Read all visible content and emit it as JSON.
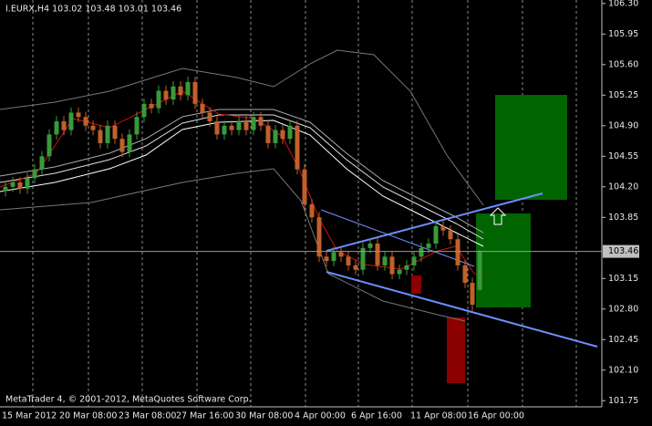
{
  "chart_data": {
    "type": "candlestick",
    "title": "I.EURX,H4 103.02 103.48 103.01 103.46",
    "footer": "MetaTrader 4, © 2001-2012, MetaQuotes Software Corp.",
    "xlabels": [
      "15 Mar 2012",
      "20 Mar 08:00",
      "23 Mar 08:00",
      "27 Mar 16:00",
      "30 Mar 08:00",
      "4 Apr 00:00",
      "6 Apr 16:00",
      "11 Apr 08:00",
      "16 Apr 00:00"
    ],
    "open": [
      104.15,
      104.2,
      104.25,
      104.18,
      104.3,
      104.4,
      104.55,
      104.8,
      104.95,
      104.85,
      105.05,
      105.0,
      104.9,
      104.85,
      104.7,
      104.9,
      104.75,
      104.6,
      104.8,
      105.0,
      105.15,
      105.1,
      105.3,
      105.2,
      105.35,
      105.25,
      105.4,
      105.15,
      105.05,
      104.95,
      104.8,
      104.9,
      104.85,
      104.95,
      104.85,
      105.0,
      104.9,
      104.7,
      104.85,
      104.75,
      104.9,
      104.4,
      104.0,
      103.85,
      103.4,
      103.35,
      103.45,
      103.4,
      103.3,
      103.25,
      103.5,
      103.55,
      103.3,
      103.4,
      103.2,
      103.25,
      103.3,
      103.4,
      103.5,
      103.55,
      103.75,
      103.7,
      103.6,
      103.3,
      103.1,
      103.02
    ],
    "high": [
      104.26,
      104.31,
      104.31,
      104.36,
      104.46,
      104.61,
      104.86,
      105.01,
      105.01,
      105.11,
      105.11,
      105.06,
      104.96,
      104.91,
      104.96,
      104.96,
      104.81,
      104.86,
      105.06,
      105.21,
      105.21,
      105.36,
      105.36,
      105.41,
      105.41,
      105.46,
      105.46,
      105.21,
      105.11,
      105.01,
      104.96,
      104.96,
      105.01,
      105.01,
      105.06,
      105.06,
      104.96,
      104.91,
      104.91,
      104.96,
      104.96,
      104.46,
      104.06,
      103.91,
      103.46,
      103.51,
      103.51,
      103.46,
      103.36,
      103.56,
      103.61,
      103.61,
      103.46,
      103.46,
      103.31,
      103.36,
      103.46,
      103.56,
      103.61,
      103.81,
      103.81,
      103.76,
      103.66,
      103.36,
      103.16,
      103.48
    ],
    "low": [
      104.09,
      104.14,
      104.12,
      104.12,
      104.24,
      104.34,
      104.49,
      104.74,
      104.79,
      104.79,
      104.94,
      104.84,
      104.79,
      104.64,
      104.64,
      104.69,
      104.54,
      104.54,
      104.74,
      104.94,
      105.04,
      105.04,
      105.14,
      105.14,
      105.19,
      105.19,
      105.09,
      104.99,
      104.89,
      104.74,
      104.74,
      104.79,
      104.79,
      104.79,
      104.79,
      104.84,
      104.64,
      104.64,
      104.69,
      104.69,
      104.34,
      103.94,
      103.79,
      103.34,
      103.29,
      103.29,
      103.34,
      103.24,
      103.19,
      103.19,
      103.44,
      103.24,
      103.24,
      103.14,
      103.14,
      103.19,
      103.24,
      103.34,
      103.44,
      103.49,
      103.64,
      103.54,
      103.24,
      103.04,
      102.78,
      103.01
    ],
    "close": [
      104.2,
      104.25,
      104.18,
      104.3,
      104.4,
      104.55,
      104.8,
      104.95,
      104.85,
      105.05,
      105.0,
      104.9,
      104.85,
      104.7,
      104.9,
      104.75,
      104.6,
      104.8,
      105.0,
      105.15,
      105.1,
      105.3,
      105.2,
      105.35,
      105.25,
      105.4,
      105.15,
      105.05,
      104.95,
      104.8,
      104.9,
      104.85,
      104.95,
      104.85,
      105.0,
      104.9,
      104.7,
      104.85,
      104.75,
      104.9,
      104.4,
      104.0,
      103.85,
      103.4,
      103.35,
      103.45,
      103.4,
      103.3,
      103.25,
      103.5,
      103.55,
      103.3,
      103.4,
      103.2,
      103.25,
      103.3,
      103.4,
      103.5,
      103.55,
      103.75,
      103.7,
      103.6,
      103.3,
      103.1,
      102.85,
      103.46
    ],
    "up_color": "#3a9a3a",
    "down_color": "#c0602c",
    "current_price": 103.46,
    "ylim": [
      101.69,
      106.34
    ],
    "yticks": [
      {
        "value": 106.3,
        "label": "106.30"
      },
      105.95,
      {
        "value": 105.6,
        "label": "105.60"
      },
      105.25,
      {
        "value": 104.9,
        "label": "104.90"
      },
      104.55,
      {
        "value": 104.2,
        "label": "104.20"
      },
      103.85,
      103.15,
      {
        "value": 102.8,
        "label": "102.80"
      },
      102.45,
      {
        "value": 102.1,
        "label": "102.10"
      },
      101.75
    ]
  }
}
